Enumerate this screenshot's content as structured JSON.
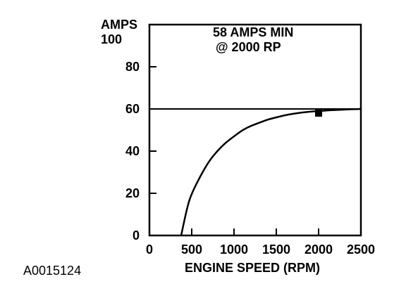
{
  "figure_id": "A0015124",
  "chart_data": {
    "type": "line",
    "title": "",
    "xlabel": "ENGINE SPEED (RPM)",
    "ylabel": "AMPS",
    "xlim": [
      0,
      2500
    ],
    "ylim": [
      0,
      100
    ],
    "x_ticks": [
      0,
      500,
      1000,
      1500,
      2000,
      2500
    ],
    "y_ticks": [
      0,
      20,
      40,
      60,
      80,
      100
    ],
    "grid": "horizontal at 60 only",
    "annotation": {
      "lines": [
        "58 AMPS MIN",
        "@ 2000 RP"
      ]
    },
    "series": [
      {
        "values_x": [
          375,
          450,
          500,
          600,
          700,
          800,
          900,
          1000,
          1100,
          1200,
          1300,
          1400,
          1500,
          1600,
          1700,
          1800,
          1900,
          2000,
          2100,
          2200,
          2300,
          2400,
          2500
        ],
        "values_y": [
          0,
          14,
          20,
          28,
          35,
          40,
          44,
          47,
          50,
          52,
          53.5,
          55,
          56,
          57,
          57.7,
          58.3,
          58.7,
          59,
          59.3,
          59.5,
          59.7,
          59.9,
          60
        ]
      }
    ],
    "marker": {
      "x": 2000,
      "y": 58
    }
  }
}
